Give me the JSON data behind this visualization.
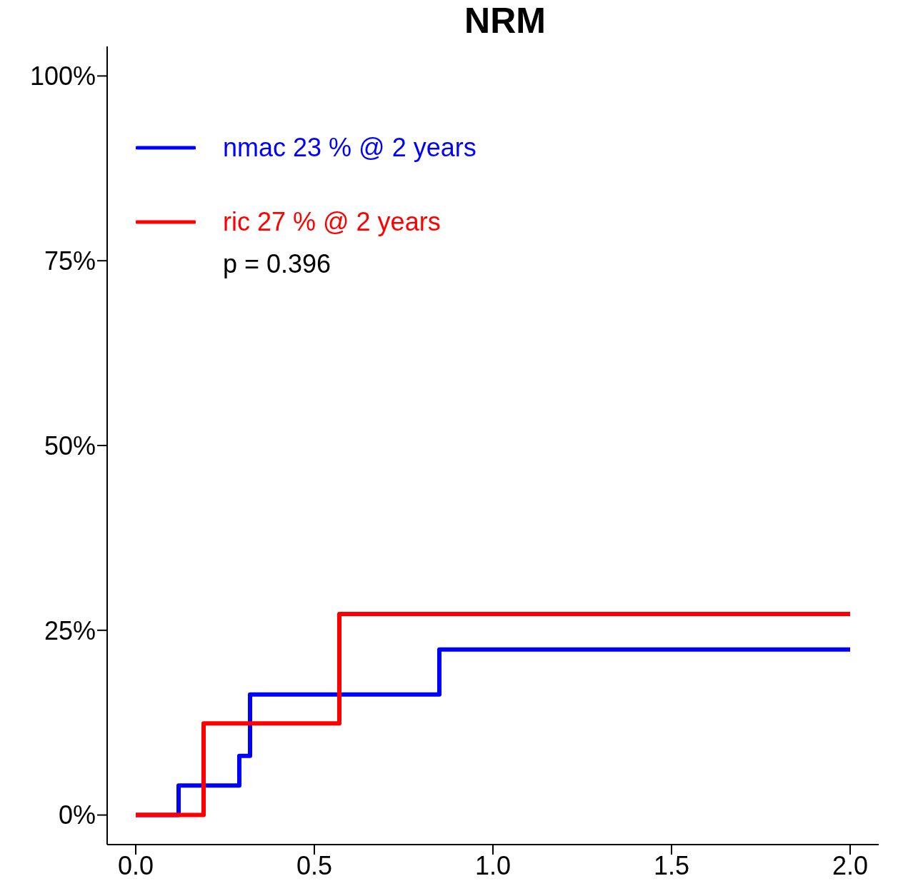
{
  "chart_data": {
    "type": "step",
    "title": "NRM",
    "series": [
      {
        "name": "nmac 23 % @ 2 years",
        "color": "#0000ff",
        "x": [
          0,
          0.12,
          0.29,
          0.32,
          0.85,
          2.0
        ],
        "values": [
          0,
          4,
          8,
          16.3,
          22.4,
          22.4
        ]
      },
      {
        "name": "ric 27 % @ 2 years",
        "color": "#ff0000",
        "x": [
          0,
          0.19,
          0.57,
          2.0
        ],
        "values": [
          0,
          12.4,
          27.2,
          27.2
        ]
      }
    ],
    "annotations": [
      "p = 0.396"
    ],
    "xlim": [
      -0.08,
      2.08
    ],
    "xticks": [
      {
        "value": 0,
        "label": "0.0"
      },
      {
        "value": 0.5,
        "label": "0.5"
      },
      {
        "value": 1,
        "label": "1.0"
      },
      {
        "value": 1.5,
        "label": "1.5"
      },
      {
        "value": 2,
        "label": "2.0"
      }
    ],
    "ylim": [
      -4,
      104
    ],
    "yticks": [
      {
        "value": 0,
        "label": "0%"
      },
      {
        "value": 25,
        "label": "25%"
      },
      {
        "value": 50,
        "label": "50%"
      },
      {
        "value": 75,
        "label": "75%"
      },
      {
        "value": 100,
        "label": "100%"
      }
    ],
    "legend": "top left",
    "grid": false,
    "marker": "none",
    "line_style": "solid"
  }
}
